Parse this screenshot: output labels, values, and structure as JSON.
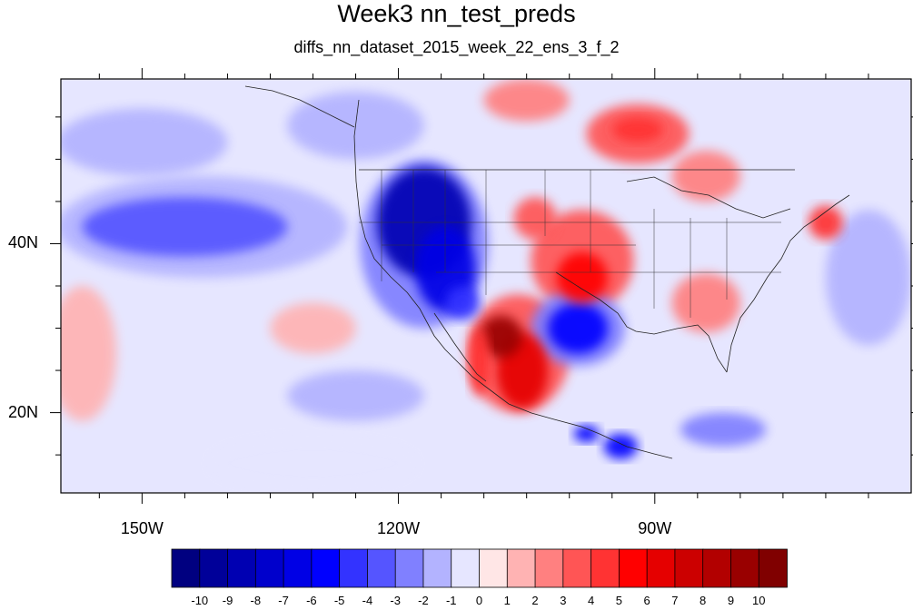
{
  "title": "Week3 nn_test_preds",
  "subtitle": "diffs_nn_dataset_2015_week_22_ens_3_f_2",
  "axes": {
    "x_ticks": [
      {
        "label": "150W",
        "lon": -150
      },
      {
        "label": "120W",
        "lon": -120
      },
      {
        "label": "90W",
        "lon": -90
      }
    ],
    "y_ticks": [
      {
        "label": "40N",
        "lat": 40
      },
      {
        "label": "20N",
        "lat": 20
      }
    ],
    "lon_range": [
      -159.5,
      -60
    ],
    "lat_range": [
      10.5,
      59.5
    ]
  },
  "colorbar": {
    "labels": [
      "-10",
      "-9",
      "-8",
      "-7",
      "-6",
      "-5",
      "-4",
      "-3",
      "-2",
      "-1",
      "0",
      "1",
      "2",
      "3",
      "4",
      "5",
      "6",
      "7",
      "8",
      "9",
      "10"
    ],
    "colors": [
      "#000080",
      "#000099",
      "#0000b2",
      "#0000cc",
      "#0000e5",
      "#0000ff",
      "#3333ff",
      "#5555ff",
      "#8080ff",
      "#b3b3ff",
      "#e6e6ff",
      "#ffe6e6",
      "#ffb3b3",
      "#ff8080",
      "#ff5555",
      "#ff3333",
      "#ff0000",
      "#e50000",
      "#cc0000",
      "#b20000",
      "#990000",
      "#800000"
    ]
  },
  "field_features": [
    {
      "name": "nw-us-low",
      "lon": -117,
      "lat": 42.5,
      "rx": 5.5,
      "ry": 6.5,
      "value": -9
    },
    {
      "name": "nevada-low",
      "lon": -114.5,
      "lat": 37,
      "rx": 3.5,
      "ry": 5,
      "value": -7
    },
    {
      "name": "baja-low",
      "lon": -112.5,
      "lat": 33,
      "rx": 2,
      "ry": 2,
      "value": -5
    },
    {
      "name": "nw-us-halo",
      "lon": -117,
      "lat": 40,
      "rx": 7.5,
      "ry": 10,
      "value": -3
    },
    {
      "name": "mexico-high",
      "lon": -108,
      "lat": 29,
      "rx": 2.5,
      "ry": 2.5,
      "value": 9
    },
    {
      "name": "mexico-high-ext",
      "lon": -105.5,
      "lat": 25,
      "rx": 3,
      "ry": 4.5,
      "value": 6
    },
    {
      "name": "mexico-halo",
      "lon": -106,
      "lat": 27,
      "rx": 6,
      "ry": 7,
      "value": 3
    },
    {
      "name": "baja-strip",
      "lon": -110.5,
      "lat": 26,
      "rx": 1.2,
      "ry": 4,
      "value": 4
    },
    {
      "name": "texas-low",
      "lon": -99,
      "lat": 30,
      "rx": 3.5,
      "ry": 3,
      "value": -6
    },
    {
      "name": "texas-halo",
      "lon": -99,
      "lat": 30,
      "rx": 5.5,
      "ry": 4.5,
      "value": -3
    },
    {
      "name": "plains-high",
      "lon": -98.5,
      "lat": 36,
      "rx": 3,
      "ry": 3,
      "value": 5
    },
    {
      "name": "plains-halo",
      "lon": -98.5,
      "lat": 38,
      "rx": 6,
      "ry": 6,
      "value": 3
    },
    {
      "name": "colorado-high",
      "lon": -104,
      "lat": 43,
      "rx": 2.5,
      "ry": 2.5,
      "value": 3
    },
    {
      "name": "canada-high",
      "lon": -92,
      "lat": 53,
      "rx": 6,
      "ry": 3.5,
      "value": 3
    },
    {
      "name": "canada-high-core",
      "lon": -92,
      "lat": 53.5,
      "rx": 3,
      "ry": 1.5,
      "value": 4
    },
    {
      "name": "hudson-high",
      "lon": -84,
      "lat": 48,
      "rx": 4,
      "ry": 3,
      "value": 2
    },
    {
      "name": "newengland-high",
      "lon": -70,
      "lat": 42.5,
      "rx": 2,
      "ry": 2,
      "value": 4
    },
    {
      "name": "southeast-high",
      "lon": -84,
      "lat": 33,
      "rx": 4,
      "ry": 3.5,
      "value": 2
    },
    {
      "name": "central-mexico-low",
      "lon": -94,
      "lat": 16,
      "rx": 2,
      "ry": 1.5,
      "value": -6
    },
    {
      "name": "yucatan-low",
      "lon": -98,
      "lat": 17.5,
      "rx": 1.5,
      "ry": 1,
      "value": -6
    },
    {
      "name": "carib-low",
      "lon": -82,
      "lat": 18,
      "rx": 5,
      "ry": 2,
      "value": -3
    },
    {
      "name": "pacific-low",
      "lon": -145,
      "lat": 42,
      "rx": 12,
      "ry": 3.5,
      "value": -4
    },
    {
      "name": "pacific-low-halo",
      "lon": -143,
      "lat": 42,
      "rx": 17,
      "ry": 6,
      "value": -2
    },
    {
      "name": "north-pacific-low",
      "lon": -150,
      "lat": 52,
      "rx": 10,
      "ry": 4,
      "value": -2
    },
    {
      "name": "goa-low",
      "lon": -125,
      "lat": 54,
      "rx": 8,
      "ry": 4,
      "value": -2
    },
    {
      "name": "alaska-high",
      "lon": -105,
      "lat": 57,
      "rx": 5,
      "ry": 2.5,
      "value": 2
    },
    {
      "name": "subtropic-high-1",
      "lon": -157,
      "lat": 27,
      "rx": 4,
      "ry": 8,
      "value": 1
    },
    {
      "name": "subtropic-high-2",
      "lon": -130,
      "lat": 30,
      "rx": 5,
      "ry": 3,
      "value": 1
    },
    {
      "name": "atlantic-low",
      "lon": -65,
      "lat": 36,
      "rx": 5,
      "ry": 8,
      "value": -2
    },
    {
      "name": "trop-pacific-low",
      "lon": -130,
      "lat": 14,
      "rx": 12,
      "ry": 3,
      "value": -1
    },
    {
      "name": "west-pacific-low",
      "lon": -125,
      "lat": 22,
      "rx": 8,
      "ry": 3,
      "value": -2
    }
  ]
}
